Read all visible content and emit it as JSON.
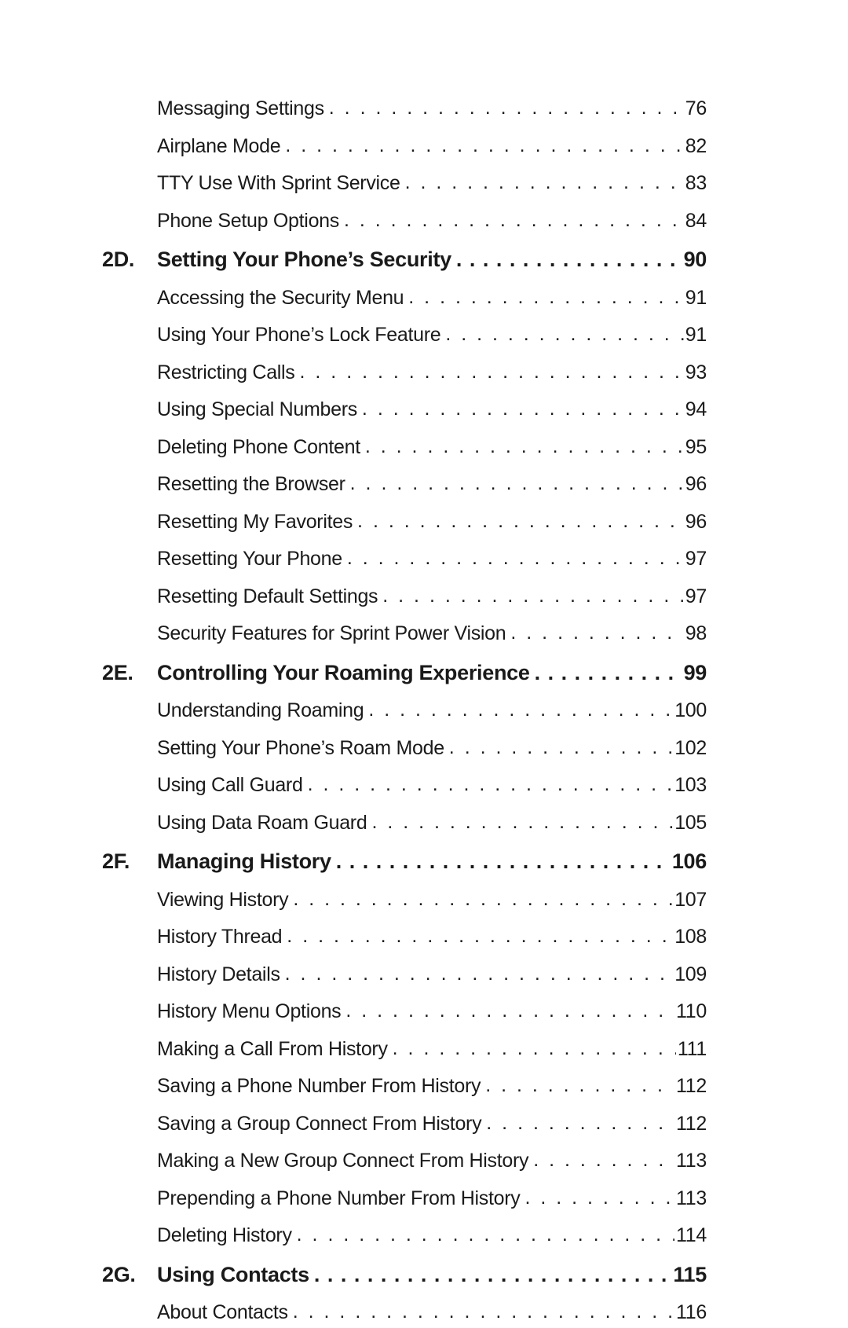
{
  "toc": [
    {
      "num": "",
      "title": "Messaging Settings",
      "page": "76",
      "bold": false
    },
    {
      "num": "",
      "title": "Airplane Mode",
      "page": "82",
      "bold": false
    },
    {
      "num": "",
      "title": "TTY Use With Sprint Service",
      "page": "83",
      "bold": false
    },
    {
      "num": "",
      "title": "Phone Setup Options",
      "page": "84",
      "bold": false
    },
    {
      "num": "2D.",
      "title": "Setting Your Phone’s Security",
      "page": "90",
      "bold": true
    },
    {
      "num": "",
      "title": "Accessing the Security Menu",
      "page": "91",
      "bold": false
    },
    {
      "num": "",
      "title": "Using Your Phone’s Lock Feature",
      "page": "91",
      "bold": false
    },
    {
      "num": "",
      "title": "Restricting Calls",
      "page": "93",
      "bold": false
    },
    {
      "num": "",
      "title": "Using Special Numbers",
      "page": "94",
      "bold": false
    },
    {
      "num": "",
      "title": "Deleting Phone Content",
      "page": "95",
      "bold": false
    },
    {
      "num": "",
      "title": "Resetting the Browser",
      "page": "96",
      "bold": false
    },
    {
      "num": "",
      "title": "Resetting My Favorites",
      "page": "96",
      "bold": false
    },
    {
      "num": "",
      "title": "Resetting Your Phone",
      "page": "97",
      "bold": false
    },
    {
      "num": "",
      "title": "Resetting Default Settings",
      "page": "97",
      "bold": false
    },
    {
      "num": "",
      "title": "Security Features for Sprint Power Vision",
      "page": "98",
      "bold": false
    },
    {
      "num": "2E.",
      "title": "Controlling Your Roaming Experience",
      "page": "99",
      "bold": true
    },
    {
      "num": "",
      "title": "Understanding Roaming",
      "page": "100",
      "bold": false
    },
    {
      "num": "",
      "title": "Setting Your Phone’s Roam Mode",
      "page": "102",
      "bold": false
    },
    {
      "num": "",
      "title": "Using Call Guard",
      "page": "103",
      "bold": false
    },
    {
      "num": "",
      "title": "Using Data Roam Guard",
      "page": "105",
      "bold": false
    },
    {
      "num": "2F.",
      "title": "Managing History",
      "page": "106",
      "bold": true
    },
    {
      "num": "",
      "title": "Viewing History",
      "page": "107",
      "bold": false
    },
    {
      "num": "",
      "title": "History Thread",
      "page": "108",
      "bold": false
    },
    {
      "num": "",
      "title": "History Details",
      "page": "109",
      "bold": false
    },
    {
      "num": "",
      "title": "History Menu Options",
      "page": "110",
      "bold": false
    },
    {
      "num": "",
      "title": "Making a Call From History",
      "page": "111",
      "bold": false
    },
    {
      "num": "",
      "title": "Saving a Phone Number From History",
      "page": "112",
      "bold": false
    },
    {
      "num": "",
      "title": "Saving a Group Connect From History",
      "page": "112",
      "bold": false
    },
    {
      "num": "",
      "title": "Making a New Group Connect From History",
      "page": "113",
      "bold": false
    },
    {
      "num": "",
      "title": "Prepending a Phone Number From History",
      "page": "113",
      "bold": false
    },
    {
      "num": "",
      "title": "Deleting History",
      "page": "114",
      "bold": false
    },
    {
      "num": "2G.",
      "title": "Using Contacts",
      "page": "115",
      "bold": true
    },
    {
      "num": "",
      "title": "About Contacts",
      "page": "116",
      "bold": false
    }
  ],
  "leader_dots": " . . . . . . . . . . . . . . . . . . . . . . . . . . . . . . . . . . . . . . . . . . . . . . . . . . . . . . . . . . . . . . . . . . . . . . . . . . . . . . . . .",
  "leader_dots_bold": " . . . . . . . . . . . . . . . . . . . . . . . . . . . . . . . . . . . . . . . . . . . . . . . . . . . . . . . . ."
}
